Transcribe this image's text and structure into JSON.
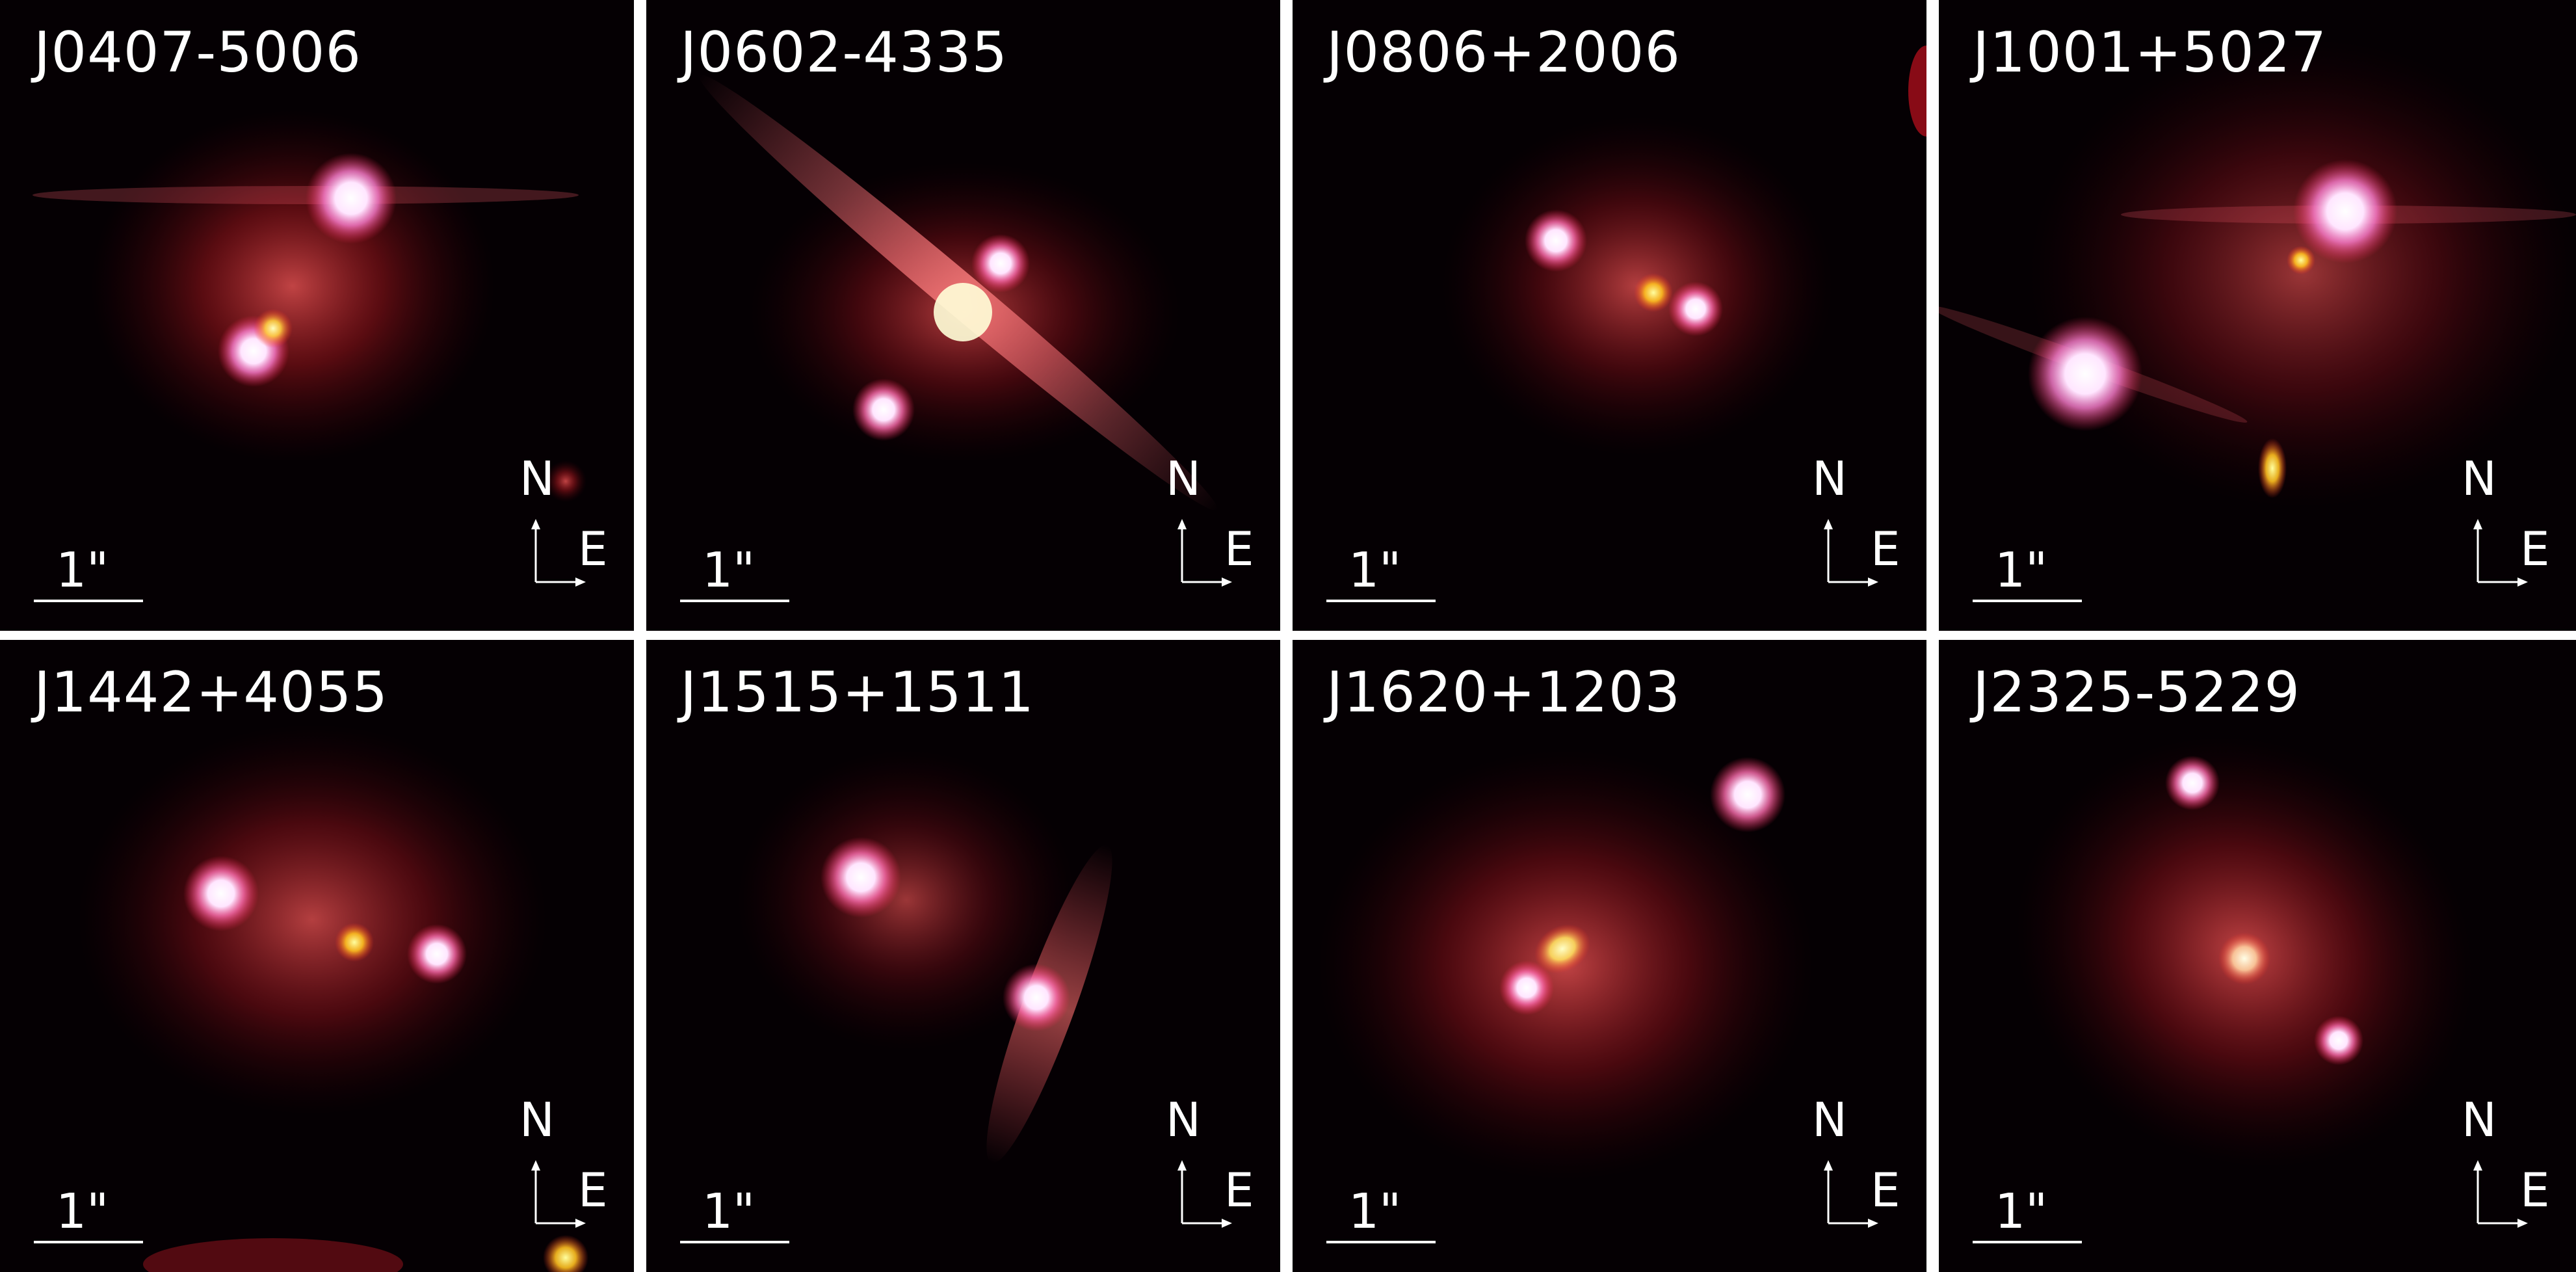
{
  "figure": {
    "scale_label": "1\"",
    "north_label": "N",
    "east_label": "E",
    "panels": [
      {
        "label": "J0407-5006"
      },
      {
        "label": "J0602-4335"
      },
      {
        "label": "J0806+2006"
      },
      {
        "label": "J1001+5027"
      },
      {
        "label": "J1442+4055"
      },
      {
        "label": "J1515+1511"
      },
      {
        "label": "J1620+1203"
      },
      {
        "label": "J2325-5229"
      }
    ]
  }
}
